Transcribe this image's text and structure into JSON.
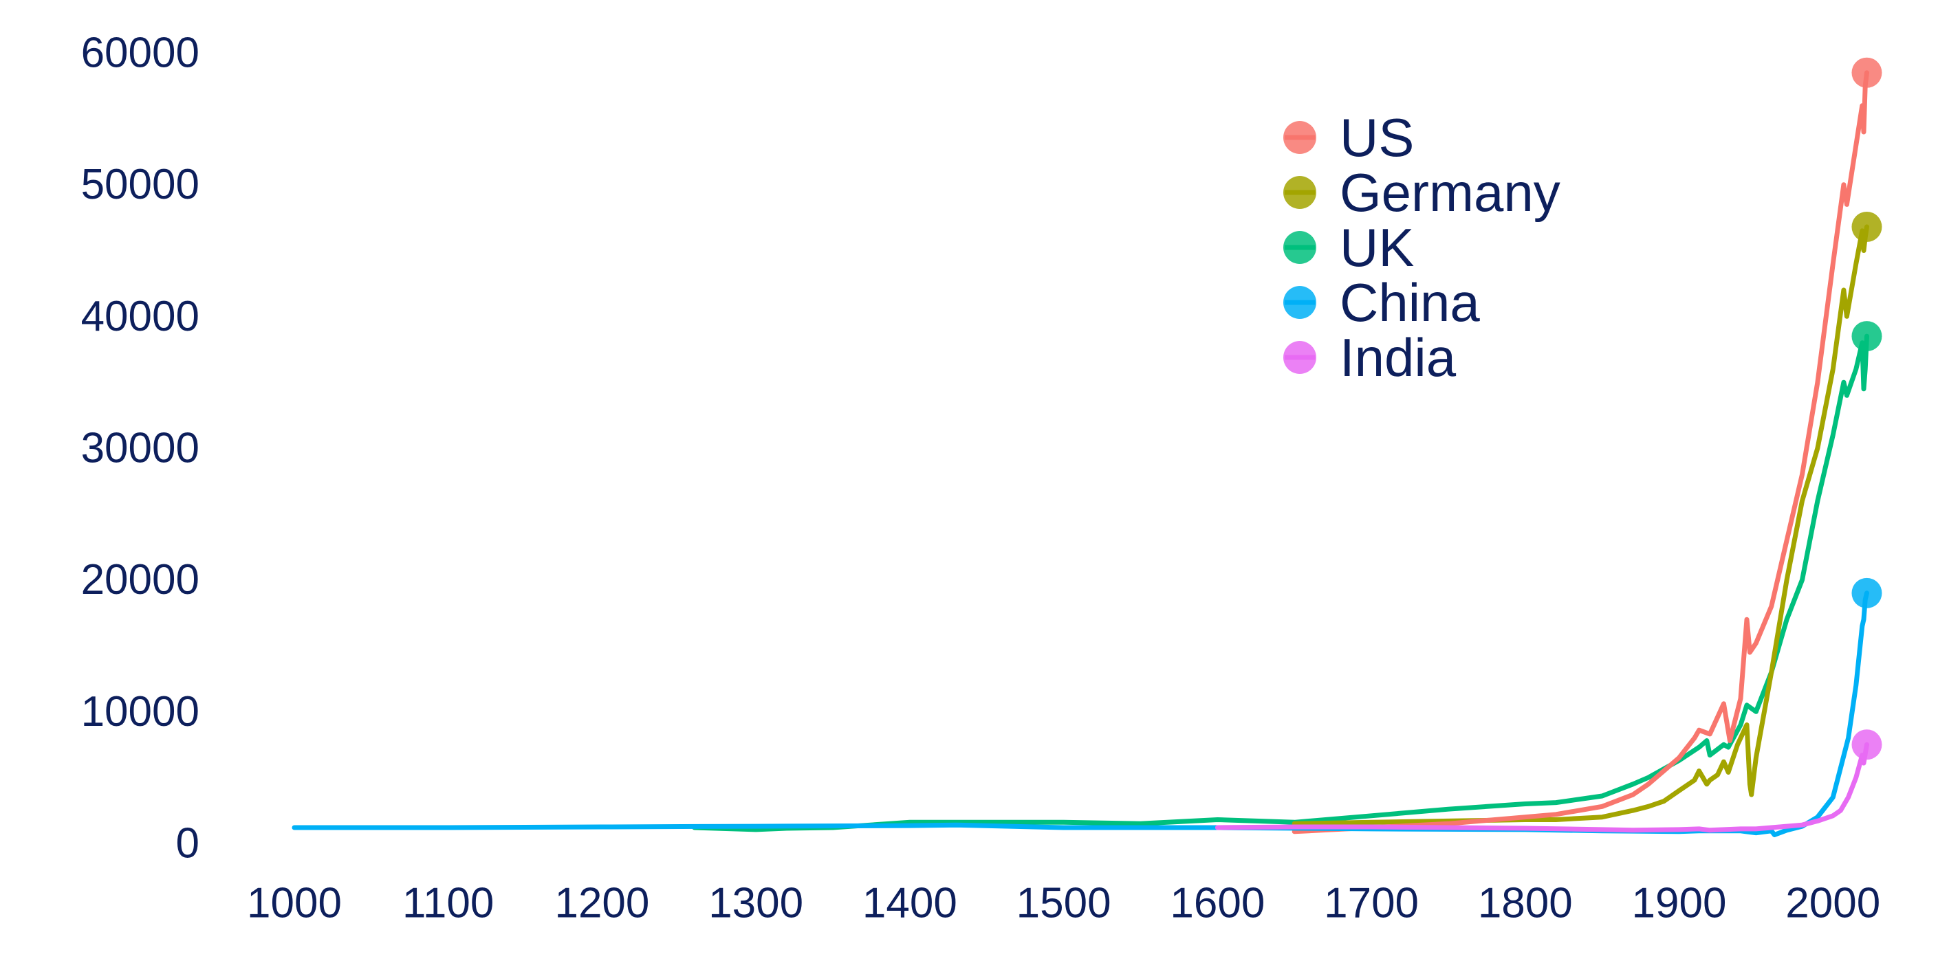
{
  "chart_data": {
    "type": "line",
    "title": "",
    "xlabel": "",
    "ylabel": "",
    "xlim": [
      1000,
      2022
    ],
    "ylim": [
      0,
      60000
    ],
    "grid": false,
    "legend_position": "top-right",
    "x_ticks": [
      1000,
      1100,
      1200,
      1300,
      1400,
      1500,
      1600,
      1700,
      1800,
      1900,
      2000
    ],
    "y_ticks": [
      0,
      10000,
      20000,
      30000,
      40000,
      50000,
      60000
    ],
    "series": [
      {
        "name": "US",
        "color": "#f8766d",
        "x": [
          1650,
          1700,
          1750,
          1800,
          1820,
          1850,
          1870,
          1880,
          1890,
          1900,
          1910,
          1913,
          1920,
          1929,
          1933,
          1940,
          1944,
          1946,
          1950,
          1960,
          1970,
          1980,
          1990,
          2000,
          2007,
          2009,
          2015,
          2019,
          2020,
          2021,
          2022
        ],
        "y": [
          900,
          1200,
          1500,
          2000,
          2200,
          2800,
          3700,
          4500,
          5500,
          6500,
          8000,
          8600,
          8300,
          10600,
          7800,
          11000,
          17000,
          14500,
          15200,
          18000,
          23000,
          28000,
          35000,
          44000,
          50000,
          48500,
          53000,
          56000,
          54000,
          57500,
          58500
        ]
      },
      {
        "name": "Germany",
        "color": "#a3a500",
        "x": [
          1650,
          1700,
          1750,
          1800,
          1820,
          1850,
          1870,
          1880,
          1890,
          1900,
          1910,
          1913,
          1918,
          1920,
          1925,
          1929,
          1932,
          1938,
          1944,
          1946,
          1947,
          1950,
          1960,
          1970,
          1980,
          1990,
          2000,
          2007,
          2009,
          2015,
          2019,
          2020,
          2021,
          2022
        ],
        "y": [
          1500,
          1600,
          1700,
          1800,
          1800,
          2000,
          2500,
          2800,
          3200,
          4000,
          4800,
          5500,
          4500,
          4800,
          5200,
          6200,
          5400,
          7500,
          9000,
          4500,
          3700,
          6500,
          13000,
          20000,
          26000,
          30000,
          36000,
          42000,
          40000,
          44000,
          46500,
          45000,
          46000,
          46800
        ]
      },
      {
        "name": "UK",
        "color": "#00bf7d",
        "x": [
          1260,
          1300,
          1320,
          1350,
          1400,
          1450,
          1500,
          1550,
          1600,
          1650,
          1700,
          1750,
          1800,
          1820,
          1850,
          1870,
          1880,
          1900,
          1913,
          1918,
          1920,
          1929,
          1932,
          1940,
          1944,
          1950,
          1960,
          1970,
          1980,
          1990,
          2000,
          2007,
          2009,
          2015,
          2019,
          2020,
          2021,
          2022
        ],
        "y": [
          1200,
          1050,
          1150,
          1200,
          1600,
          1600,
          1600,
          1500,
          1800,
          1600,
          2100,
          2600,
          3000,
          3100,
          3600,
          4500,
          5000,
          6300,
          7300,
          7800,
          6700,
          7500,
          7300,
          9000,
          10500,
          10000,
          13000,
          17000,
          20000,
          26000,
          31000,
          35000,
          34000,
          36000,
          38000,
          34500,
          36000,
          38500
        ]
      },
      {
        "name": "China",
        "color": "#00b0f6",
        "x": [
          1000,
          1100,
          1200,
          1300,
          1400,
          1430,
          1500,
          1600,
          1700,
          1800,
          1850,
          1900,
          1913,
          1940,
          1950,
          1960,
          1962,
          1970,
          1980,
          1990,
          2000,
          2010,
          2015,
          2019,
          2020,
          2021,
          2022
        ],
        "y": [
          1200,
          1200,
          1250,
          1300,
          1350,
          1400,
          1200,
          1200,
          1100,
          1050,
          950,
          900,
          950,
          950,
          800,
          950,
          650,
          1000,
          1300,
          2000,
          3500,
          8000,
          12000,
          16500,
          17000,
          18500,
          19000
        ]
      },
      {
        "name": "India",
        "color": "#e76bf3",
        "x": [
          1600,
          1650,
          1700,
          1750,
          1800,
          1850,
          1870,
          1900,
          1913,
          1920,
          1940,
          1950,
          1960,
          1970,
          1980,
          1990,
          2000,
          2005,
          2010,
          2015,
          2019,
          2020,
          2021,
          2022
        ],
        "y": [
          1200,
          1250,
          1250,
          1200,
          1150,
          1050,
          1000,
          1050,
          1100,
          1000,
          1100,
          1100,
          1200,
          1300,
          1400,
          1700,
          2100,
          2500,
          3500,
          5000,
          6700,
          6100,
          6800,
          7500
        ]
      }
    ]
  }
}
